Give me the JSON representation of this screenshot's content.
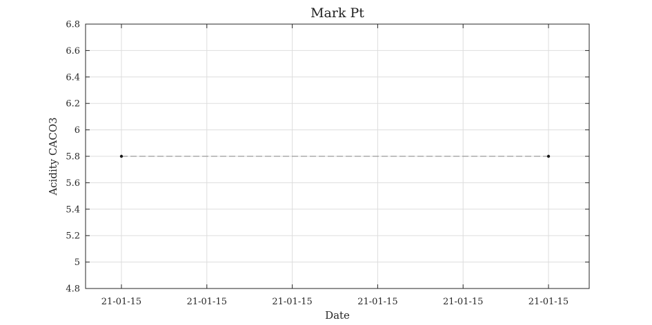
{
  "chart_data": {
    "type": "line",
    "title": "Mark Pt",
    "xlabel": "Date",
    "ylabel": "Acidity CACO3",
    "x_tick_labels": [
      "21-01-15",
      "21-01-15",
      "21-01-15",
      "21-01-15",
      "21-01-15",
      "21-01-15"
    ],
    "y_ticks": [
      4.8,
      5,
      5.2,
      5.4,
      5.6,
      5.8,
      6,
      6.2,
      6.4,
      6.6,
      6.8
    ],
    "y_tick_labels": [
      "4.8",
      "5",
      "5.2",
      "5.4",
      "5.6",
      "5.8",
      "6",
      "6.2",
      "6.4",
      "6.6",
      "6.8"
    ],
    "ylim": [
      4.8,
      6.8
    ],
    "grid": true,
    "series": [
      {
        "x_index": [
          0,
          5
        ],
        "values": [
          5.8,
          5.8
        ],
        "line_style": "dashed",
        "line_color": "#999999",
        "marker_color": "#1a1a1a"
      }
    ]
  }
}
